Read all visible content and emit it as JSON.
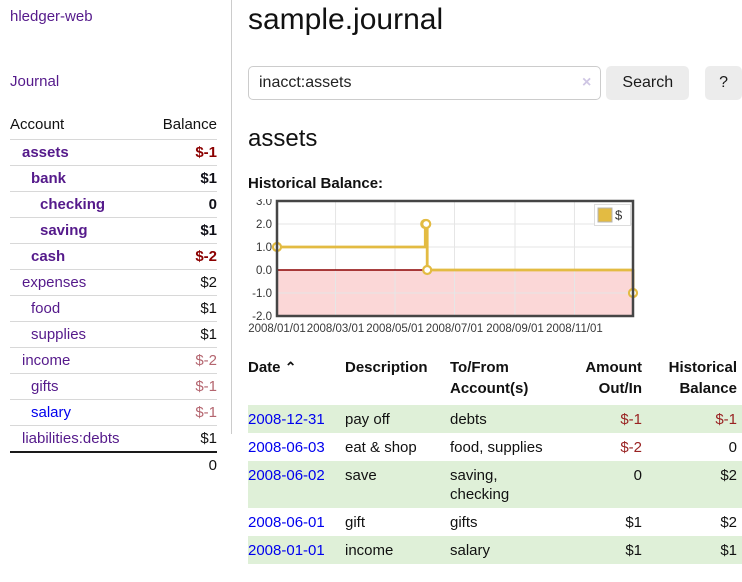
{
  "app": {
    "title": "hledger-web"
  },
  "sidebar": {
    "journal_link": "Journal",
    "header": {
      "account": "Account",
      "balance": "Balance"
    },
    "accounts": [
      {
        "name": "assets",
        "balance": "$-1"
      },
      {
        "name": "bank",
        "balance": "$1"
      },
      {
        "name": "checking",
        "balance": "0"
      },
      {
        "name": "saving",
        "balance": "$1"
      },
      {
        "name": "cash",
        "balance": "$-2"
      },
      {
        "name": "expenses",
        "balance": "$2"
      },
      {
        "name": "food",
        "balance": "$1"
      },
      {
        "name": "supplies",
        "balance": "$1"
      },
      {
        "name": "income",
        "balance": "$-2"
      },
      {
        "name": "gifts",
        "balance": "$-1"
      },
      {
        "name": "salary",
        "balance": "$-1"
      },
      {
        "name": "liabilities:debts",
        "balance": "$1"
      }
    ],
    "total": "0"
  },
  "header": {
    "title": "sample.journal"
  },
  "search": {
    "value": "inacct:assets",
    "clear_icon": "×",
    "button_label": "Search",
    "help_label": "?"
  },
  "account_page": {
    "heading": "assets",
    "chart_title": "Historical Balance:"
  },
  "chart_data": {
    "type": "line",
    "style": "step-after",
    "series": [
      {
        "name": "$",
        "points": [
          {
            "date": "2008-01-01",
            "value": 1
          },
          {
            "date": "2008-06-01",
            "value": 2
          },
          {
            "date": "2008-06-02",
            "value": 2
          },
          {
            "date": "2008-06-03",
            "value": 0
          },
          {
            "date": "2008-12-31",
            "value": -1
          }
        ]
      }
    ],
    "xrange": [
      "2008-01-01",
      "2008-12-31"
    ],
    "xticks": [
      "2008/01/01",
      "2008/03/01",
      "2008/05/01",
      "2008/07/01",
      "2008/09/01",
      "2008/11/01"
    ],
    "ylim": [
      -2,
      3
    ],
    "yticks": [
      3,
      2,
      1,
      0,
      -1,
      -2
    ],
    "legend_position": "top-right",
    "grid": true,
    "negative_region_fill": "#fbd7d7",
    "zero_line_color": "#8b0000",
    "line_color": "#e3bb42"
  },
  "register": {
    "columns": {
      "date": "Date",
      "sort_indicator": "⌃",
      "description": "Description",
      "accounts": "To/From Account(s)",
      "amount": "Amount Out/In",
      "balance": "Historical Balance"
    },
    "rows": [
      {
        "date": "2008-12-31",
        "description": "pay off",
        "accounts": "debts",
        "amount": "$-1",
        "balance": "$-1"
      },
      {
        "date": "2008-06-03",
        "description": "eat & shop",
        "accounts": "food, supplies",
        "amount": "$-2",
        "balance": "0"
      },
      {
        "date": "2008-06-02",
        "description": "save",
        "accounts": "saving, checking",
        "amount": "0",
        "balance": "$2"
      },
      {
        "date": "2008-06-01",
        "description": "gift",
        "accounts": "gifts",
        "amount": "$1",
        "balance": "$2"
      },
      {
        "date": "2008-01-01",
        "description": "income",
        "accounts": "salary",
        "amount": "$1",
        "balance": "$1"
      }
    ]
  },
  "colors": {
    "link_visited_purple": "#551A8B",
    "link_blue": "#0000EE",
    "negative_strong": "#8b0000",
    "negative_soft": "#b4656f",
    "table_negative": "#992222",
    "row_stripe_green": "#dff0d8",
    "button_gray": "#ececec",
    "chart_gold": "#e3bb42",
    "chart_pink": "#fbd7d7"
  }
}
